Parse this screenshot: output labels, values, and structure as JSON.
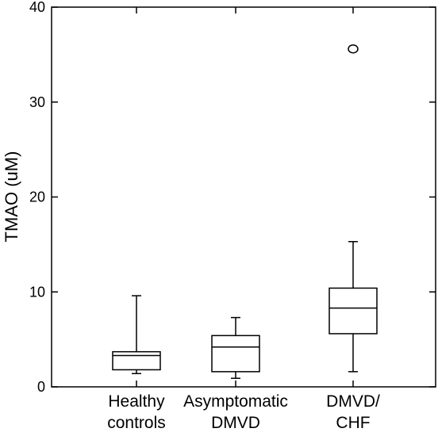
{
  "chart_data": {
    "type": "box",
    "ylabel": "TMAO (uM)",
    "xlabel": "",
    "ylim": [
      0,
      40
    ],
    "yticks": [
      0,
      10,
      20,
      30,
      40
    ],
    "grid": false,
    "categories": [
      [
        "Healthy",
        "controls"
      ],
      [
        "Asymptomatic",
        "DMVD"
      ],
      [
        "DMVD/",
        "CHF"
      ]
    ],
    "boxes": [
      {
        "whisker_low": 1.4,
        "q1": 1.8,
        "median": 3.3,
        "q3": 3.7,
        "whisker_high": 9.6,
        "outliers": []
      },
      {
        "whisker_low": 0.9,
        "q1": 1.6,
        "median": 4.2,
        "q3": 5.4,
        "whisker_high": 7.3,
        "outliers": []
      },
      {
        "whisker_low": 1.6,
        "q1": 5.6,
        "median": 8.3,
        "q3": 10.4,
        "whisker_high": 15.3,
        "outliers": [
          35.6
        ]
      }
    ]
  }
}
